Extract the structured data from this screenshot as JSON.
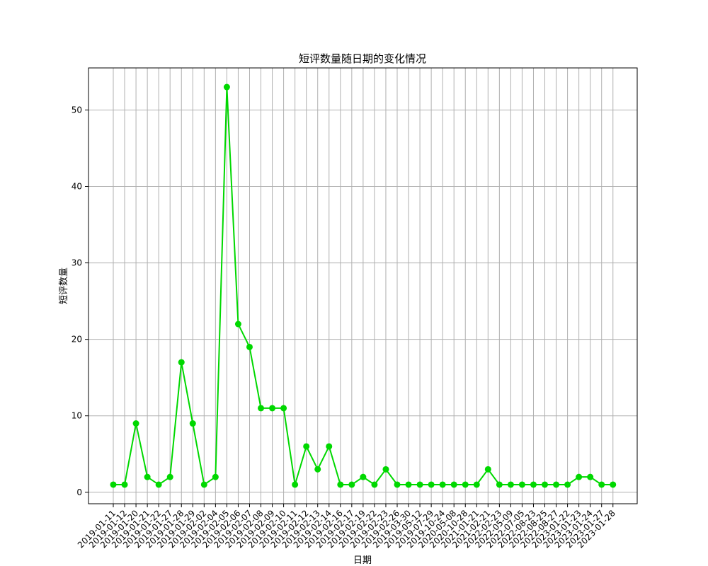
{
  "chart_data": {
    "type": "line",
    "title": "短评数量随日期的变化情况",
    "xlabel": "日期",
    "ylabel": "短评数量",
    "ylim": [
      -1.5,
      55.5
    ],
    "yticks": [
      0,
      10,
      20,
      30,
      40,
      50
    ],
    "grid": true,
    "color": "#00d800",
    "marker": "circle",
    "categories": [
      "2019-01-11",
      "2019-01-12",
      "2019-01-20",
      "2019-01-21",
      "2019-01-22",
      "2019-01-27",
      "2019-01-28",
      "2019-01-29",
      "2019-02-02",
      "2019-02-04",
      "2019-02-05",
      "2019-02-06",
      "2019-02-07",
      "2019-02-08",
      "2019-02-09",
      "2019-02-10",
      "2019-02-11",
      "2019-02-12",
      "2019-02-13",
      "2019-02-14",
      "2019-02-16",
      "2019-02-17",
      "2019-02-19",
      "2019-02-22",
      "2019-02-23",
      "2019-02-26",
      "2019-03-30",
      "2019-05-12",
      "2019-07-29",
      "2019-10-24",
      "2020-05-08",
      "2020-10-28",
      "2021-01-21",
      "2021-02-21",
      "2022-02-23",
      "2022-05-09",
      "2022-07-05",
      "2022-08-23",
      "2022-08-25",
      "2022-08-27",
      "2023-01-22",
      "2023-01-23",
      "2023-01-24",
      "2023-01-27",
      "2023-01-28"
    ],
    "values": [
      1,
      1,
      9,
      2,
      1,
      2,
      17,
      9,
      1,
      2,
      53,
      22,
      19,
      11,
      11,
      11,
      1,
      6,
      3,
      6,
      1,
      1,
      2,
      1,
      3,
      1,
      1,
      1,
      1,
      1,
      1,
      1,
      1,
      3,
      1,
      1,
      1,
      1,
      1,
      1,
      1,
      2,
      2,
      1,
      1
    ]
  }
}
